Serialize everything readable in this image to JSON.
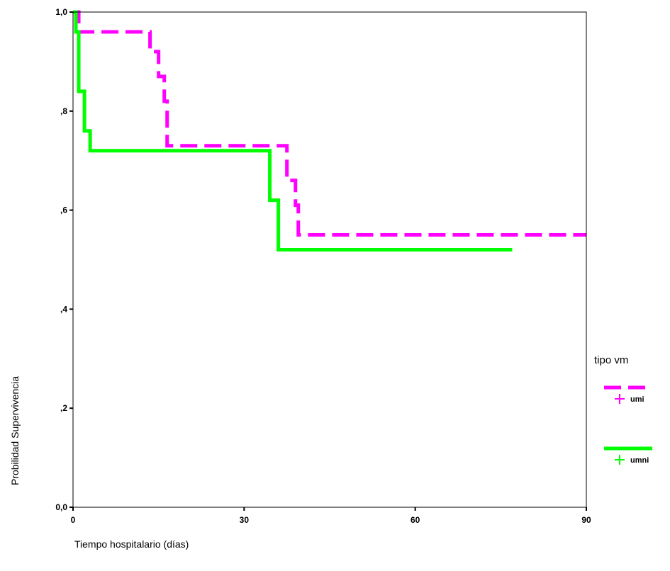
{
  "chart_data": {
    "type": "line",
    "title": "",
    "xlabel": "Tiempo hospitalario (días)",
    "ylabel": "Probilidad Supervivencia",
    "xlim": [
      0,
      90
    ],
    "ylim": [
      0,
      1
    ],
    "x_ticks": [
      0,
      30,
      60,
      90
    ],
    "x_tick_labels": [
      "0",
      "30",
      "60",
      "90"
    ],
    "y_ticks": [
      0,
      0.2,
      0.4,
      0.6,
      0.8,
      1.0
    ],
    "y_tick_labels": [
      "0,0",
      ",2",
      ",4",
      ",6",
      ",8",
      "1,0"
    ],
    "grid": false,
    "legend": {
      "title": "tipo vm",
      "placement": "right",
      "entries": [
        "umi",
        "umni"
      ]
    },
    "series": [
      {
        "name": "umi",
        "color": "#ff00ff",
        "style": "dashed",
        "step": true,
        "points": [
          [
            0,
            1.0
          ],
          [
            1,
            0.96
          ],
          [
            13,
            0.96
          ],
          [
            13.5,
            0.92
          ],
          [
            15,
            0.87
          ],
          [
            16,
            0.82
          ],
          [
            16.5,
            0.73
          ],
          [
            37,
            0.73
          ],
          [
            37.5,
            0.66
          ],
          [
            39,
            0.61
          ],
          [
            39.5,
            0.55
          ],
          [
            90,
            0.55
          ]
        ]
      },
      {
        "name": "umni",
        "color": "#00ff00",
        "style": "solid",
        "step": true,
        "points": [
          [
            0,
            1.0
          ],
          [
            0.5,
            0.96
          ],
          [
            1,
            0.84
          ],
          [
            2,
            0.76
          ],
          [
            3,
            0.72
          ],
          [
            34,
            0.72
          ],
          [
            34.5,
            0.62
          ],
          [
            36,
            0.52
          ],
          [
            77,
            0.52
          ]
        ]
      }
    ]
  }
}
